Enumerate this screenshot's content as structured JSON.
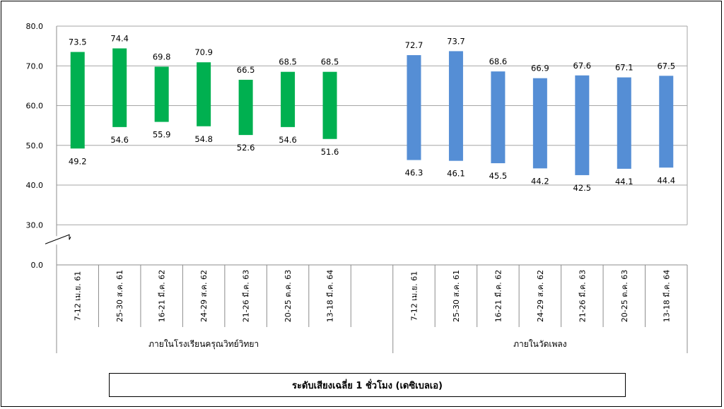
{
  "chart_data": {
    "type": "floating-bar",
    "y_ticks": [
      "0.0",
      "30.0",
      "40.0",
      "50.0",
      "60.0",
      "70.0",
      "80.0"
    ],
    "y_break": [
      0,
      30
    ],
    "ylim": [
      30,
      80
    ],
    "grid": true,
    "legend_label": "ระดับเสียงเฉลี่ย 1 ชั่วโมง (เดซิเบลเอ)",
    "groups": [
      {
        "name": "ภายในโรงเรียนครุณวิทย์วิทยา",
        "color": "#00b050",
        "categories": [
          "7-12 เม.ย. 61",
          "25-30 ส.ค. 61",
          "16-21 มี.ค. 62",
          "24-29 ส.ค. 62",
          "21-26 มี.ค. 63",
          "20-25 ต.ค. 63",
          "13-18 มี.ค. 64"
        ],
        "min": [
          49.2,
          54.6,
          55.9,
          54.8,
          52.6,
          54.6,
          51.6
        ],
        "max": [
          73.5,
          74.4,
          69.8,
          70.9,
          66.5,
          68.5,
          68.5
        ]
      },
      {
        "name": "ภายในวัดเพลง",
        "color": "#558ed5",
        "categories": [
          "7-12 เม.ย. 61",
          "25-30 ส.ค. 61",
          "16-21 มี.ค. 62",
          "24-29 ส.ค. 62",
          "21-26 มี.ค. 63",
          "20-25 ต.ค. 63",
          "13-18 มี.ค. 64"
        ],
        "min": [
          46.3,
          46.1,
          45.5,
          44.2,
          42.5,
          44.1,
          44.4
        ],
        "max": [
          72.7,
          73.7,
          68.6,
          66.9,
          67.6,
          67.1,
          67.5
        ]
      }
    ]
  }
}
